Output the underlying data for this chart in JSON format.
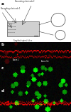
{
  "fig_width": 1.0,
  "fig_height": 1.56,
  "dpi": 100,
  "bg_color": "#ffffff",
  "panel_a": {
    "bg": "#f0f0f0",
    "label": "a",
    "slice_color": "#d0d0d0",
    "slice_border": "#555555"
  },
  "panel_b": {
    "label": "b",
    "bg": "#000000",
    "channel": "red"
  },
  "panel_c": {
    "label": "c",
    "bg": "#000000",
    "channel": "green"
  },
  "panel_d": {
    "label": "d",
    "bg": "#000000",
    "channel": "mixed"
  }
}
